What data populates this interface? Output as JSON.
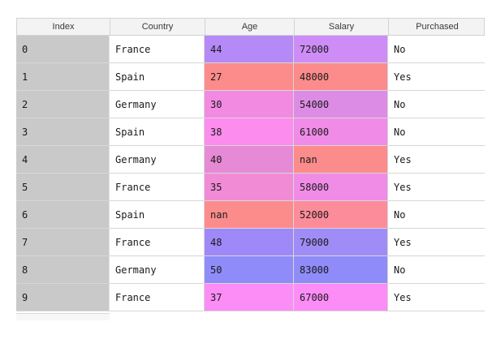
{
  "headers": [
    "Index",
    "Country",
    "Age",
    "Salary",
    "Purchased"
  ],
  "colors": {
    "index_bg": "#c9c9c9",
    "age_col": [
      "#b58af7",
      "#fc8c8c",
      "#f28ae2",
      "#fc8cee",
      "#e68ad6",
      "#f18bd6",
      "#fc8c8c",
      "#9f88f8",
      "#8f8cfa",
      "#fc8cf6"
    ],
    "salary_col": [
      "#ce8cf7",
      "#fc8c8c",
      "#dd8ce6",
      "#f18be8",
      "#fc8c8c",
      "#f08ce6",
      "#fd8c9a",
      "#a08cf6",
      "#8f8cfa",
      "#fc8cf6"
    ]
  },
  "rows": [
    {
      "index": "0",
      "country": "France",
      "age": "44",
      "salary": "72000",
      "purchased": "No"
    },
    {
      "index": "1",
      "country": "Spain",
      "age": "27",
      "salary": "48000",
      "purchased": "Yes"
    },
    {
      "index": "2",
      "country": "Germany",
      "age": "30",
      "salary": "54000",
      "purchased": "No"
    },
    {
      "index": "3",
      "country": "Spain",
      "age": "38",
      "salary": "61000",
      "purchased": "No"
    },
    {
      "index": "4",
      "country": "Germany",
      "age": "40",
      "salary": "nan",
      "purchased": "Yes"
    },
    {
      "index": "5",
      "country": "France",
      "age": "35",
      "salary": "58000",
      "purchased": "Yes"
    },
    {
      "index": "6",
      "country": "Spain",
      "age": "nan",
      "salary": "52000",
      "purchased": "No"
    },
    {
      "index": "7",
      "country": "France",
      "age": "48",
      "salary": "79000",
      "purchased": "Yes"
    },
    {
      "index": "8",
      "country": "Germany",
      "age": "50",
      "salary": "83000",
      "purchased": "No"
    },
    {
      "index": "9",
      "country": "France",
      "age": "37",
      "salary": "67000",
      "purchased": "Yes"
    }
  ]
}
